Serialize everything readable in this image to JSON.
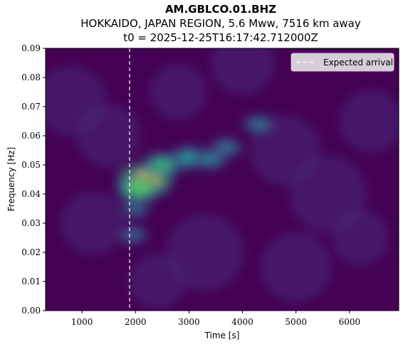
{
  "chart_data": {
    "type": "heatmap",
    "title": "AM.GBLCO.01.BHZ",
    "subtitle": "HOKKAIDO, JAPAN REGION, 5.6 Mww, 7516 km away",
    "subtitle2": "t0 = 2025-12-25T16:17:42.712000Z",
    "xlabel": "Time [s]",
    "ylabel": "Frequency [Hz]",
    "xlim": [
      320,
      6920
    ],
    "ylim": [
      0.0,
      0.09
    ],
    "xticks": [
      1000,
      2000,
      3000,
      4000,
      5000,
      6000
    ],
    "yticks": [
      0.0,
      0.01,
      0.02,
      0.03,
      0.04,
      0.05,
      0.06,
      0.07,
      0.08,
      0.09
    ],
    "ytick_labels": [
      "0.00",
      "0.01",
      "0.02",
      "0.03",
      "0.04",
      "0.05",
      "0.06",
      "0.07",
      "0.08",
      "0.09"
    ],
    "colormap": "viridis",
    "expected_arrival": 1890,
    "legend": {
      "entries": [
        "Expected arrival"
      ],
      "placement": "top-right"
    },
    "energy_peaks": [
      {
        "t": 2180,
        "f": 0.0445,
        "amp": 1.0
      },
      {
        "t": 2060,
        "f": 0.042,
        "amp": 0.7
      },
      {
        "t": 2500,
        "f": 0.05,
        "amp": 0.6
      },
      {
        "t": 3000,
        "f": 0.0525,
        "amp": 0.5
      },
      {
        "t": 3400,
        "f": 0.052,
        "amp": 0.4
      },
      {
        "t": 3700,
        "f": 0.056,
        "amp": 0.35
      },
      {
        "t": 4300,
        "f": 0.064,
        "amp": 0.35
      },
      {
        "t": 2000,
        "f": 0.035,
        "amp": 0.3
      },
      {
        "t": 1960,
        "f": 0.026,
        "amp": 0.3
      }
    ]
  }
}
